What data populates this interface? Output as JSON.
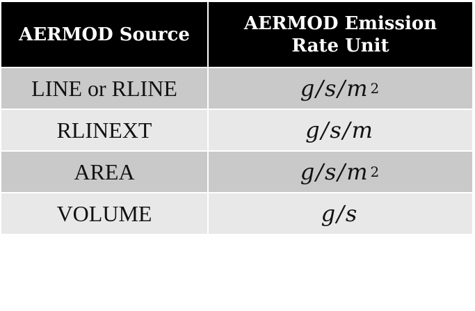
{
  "table": {
    "headers": [
      "AERMOD Source",
      "AERMOD Emission\nRate Unit"
    ],
    "rows": [
      {
        "source": "LINE or RLINE",
        "unit_base": "g/s/m",
        "unit_exp": "2"
      },
      {
        "source": "RLINEXT",
        "unit_base": "g/s/m",
        "unit_exp": ""
      },
      {
        "source": "AREA",
        "unit_base": "g/s/m",
        "unit_exp": "2"
      },
      {
        "source": "VOLUME",
        "unit_base": "g/s",
        "unit_exp": ""
      }
    ]
  },
  "colors": {
    "header_bg": "#000000",
    "header_text": "#ffffff",
    "row_dark": "#c9c9c9",
    "row_light": "#e8e8e8"
  }
}
